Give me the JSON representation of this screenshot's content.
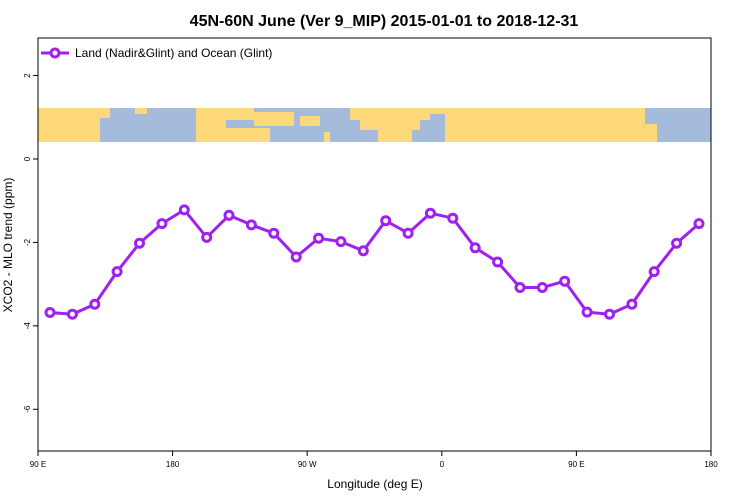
{
  "chart_data": {
    "type": "line",
    "title": "45N-60N June (Ver 9_MIP)   2015-01-01 to 2018-12-31",
    "xlabel": "Longitude (deg E)",
    "ylabel": "XCO2 - MLO trend (ppm)",
    "x_ticks": [
      "90 E",
      "180",
      "90 W",
      "0",
      "90 E",
      "180"
    ],
    "y_ticks": [
      "2",
      "0",
      "-2",
      "-4",
      "-6"
    ],
    "y_tick_values": [
      2,
      0,
      -2,
      -4,
      -6
    ],
    "ylim": [
      -7.0,
      2.9
    ],
    "legend": {
      "position": "top-left",
      "label": "Land (Nadir&Glint) and Ocean (Glint)"
    },
    "grid": false,
    "series": [
      {
        "name": "Land (Nadir&Glint) and Ocean (Glint)",
        "color": "#a020f0",
        "values": [
          -3.68,
          -3.72,
          -3.48,
          -2.7,
          -2.02,
          -1.55,
          -1.22,
          -1.88,
          -1.35,
          -1.58,
          -1.78,
          -2.35,
          -1.9,
          -1.98,
          -2.2,
          -1.48,
          -1.78,
          -1.3,
          -1.42,
          -2.13,
          -2.47,
          -3.08,
          -3.08,
          -2.93,
          -3.67,
          -3.72,
          -3.48,
          -2.7,
          -2.02,
          -1.55
        ]
      }
    ],
    "map_band": {
      "ocean_color": "#a5bbdc",
      "land_color": "#fdd97a"
    }
  }
}
